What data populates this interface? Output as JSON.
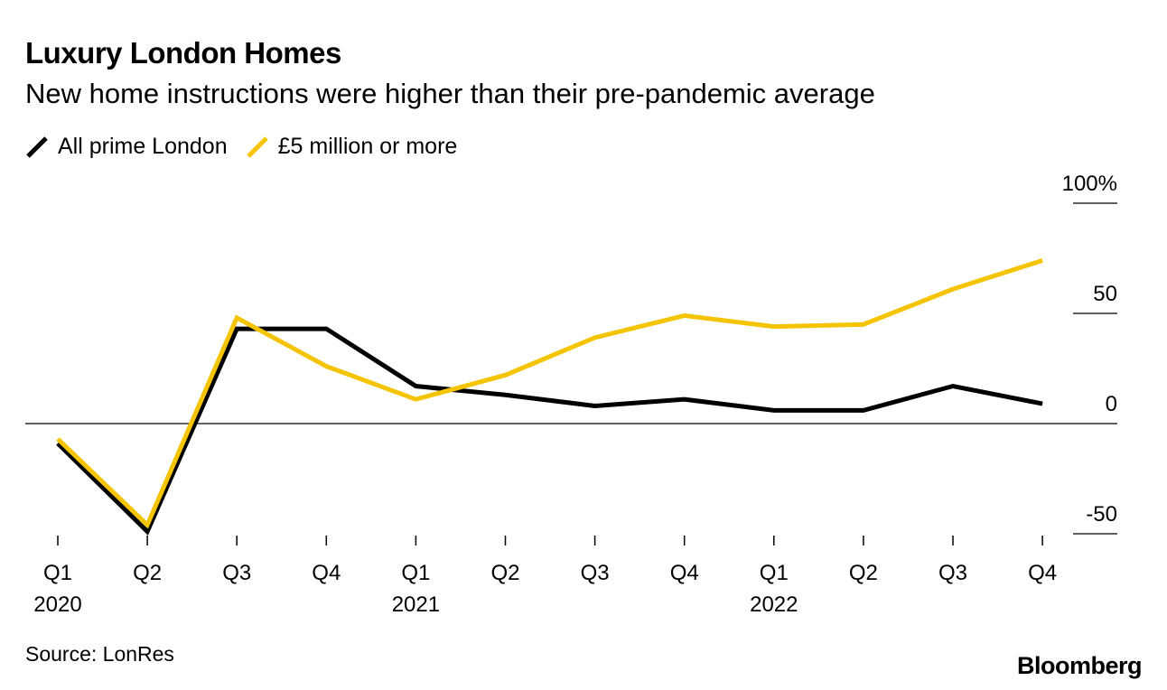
{
  "header": {
    "title": "Luxury London Homes",
    "subtitle": "New home instructions were higher than their pre-pandemic average"
  },
  "legend": [
    {
      "label": "All prime London",
      "color": "#000000"
    },
    {
      "label": "£5 million or more",
      "color": "#f5c400"
    }
  ],
  "footer": {
    "source": "Source: LonRes",
    "brand": "Bloomberg"
  },
  "chart_data": {
    "type": "line",
    "title": "Luxury London Homes",
    "subtitle": "New home instructions were higher than their pre-pandemic average",
    "xlabel": "",
    "ylabel": "",
    "categories": [
      "Q1 2020",
      "Q2 2020",
      "Q3 2020",
      "Q4 2020",
      "Q1 2021",
      "Q2 2021",
      "Q3 2021",
      "Q4 2021",
      "Q1 2022",
      "Q2 2022",
      "Q3 2022",
      "Q4 2022"
    ],
    "x_tick_labels": [
      "Q1",
      "Q2",
      "Q3",
      "Q4",
      "Q1",
      "Q2",
      "Q3",
      "Q4",
      "Q1",
      "Q2",
      "Q3",
      "Q4"
    ],
    "x_year_labels": [
      {
        "index": 0,
        "label": "2020"
      },
      {
        "index": 4,
        "label": "2021"
      },
      {
        "index": 8,
        "label": "2022"
      }
    ],
    "y_ticks": [
      {
        "value": 100,
        "label": "100%"
      },
      {
        "value": 50,
        "label": "50"
      },
      {
        "value": 0,
        "label": "0"
      },
      {
        "value": -50,
        "label": "-50"
      }
    ],
    "ylim": [
      -55,
      100
    ],
    "y_axis_position": "right",
    "legend_position": "top-left",
    "grid": false,
    "series": [
      {
        "name": "All prime London",
        "color": "#000000",
        "values": [
          -9,
          -49,
          43,
          43,
          17,
          13,
          8,
          11,
          6,
          6,
          17,
          9
        ]
      },
      {
        "name": "£5 million or more",
        "color": "#f5c400",
        "values": [
          -7,
          -46,
          48,
          26,
          11,
          22,
          39,
          49,
          44,
          45,
          61,
          74
        ]
      }
    ]
  }
}
